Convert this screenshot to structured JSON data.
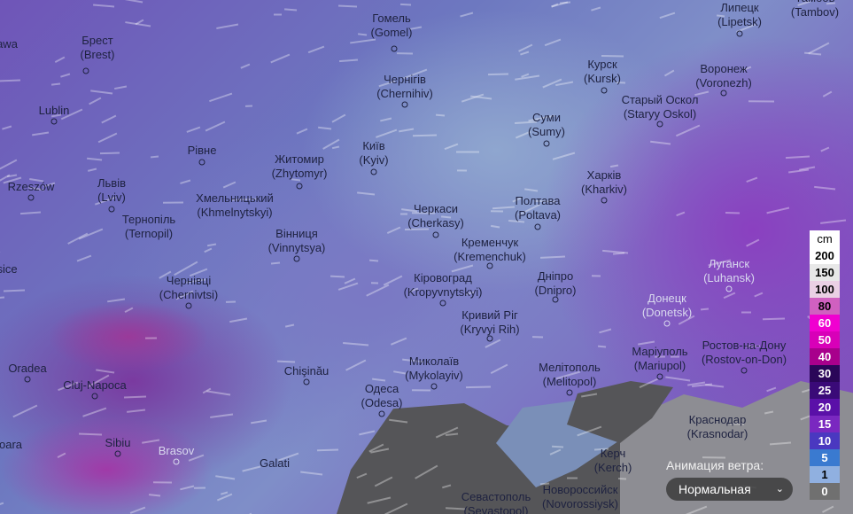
{
  "cities": [
    {
      "l1": "awa",
      "l2": ""
    },
    {
      "l1": "Брест",
      "l2": "(Brest)"
    },
    {
      "l1": "Гомель",
      "l2": "(Gomel)"
    },
    {
      "l1": "Чернігів",
      "l2": "(Chernihiv)"
    },
    {
      "l1": "Курск",
      "l2": "(Kursk)"
    },
    {
      "l1": "Липецк",
      "l2": "(Lipetsk)"
    },
    {
      "l1": "Тамбов",
      "l2": "(Tambov)"
    },
    {
      "l1": "Воронеж",
      "l2": "(Voronezh)"
    },
    {
      "l1": "Старый Оскол",
      "l2": "(Staryy Oskol)"
    },
    {
      "l1": "Lublin",
      "l2": ""
    },
    {
      "l1": "Суми",
      "l2": "(Sumy)"
    },
    {
      "l1": "Рівне",
      "l2": ""
    },
    {
      "l1": "Житомир",
      "l2": "(Zhytomyr)"
    },
    {
      "l1": "Київ",
      "l2": "(Kyiv)"
    },
    {
      "l1": "Харків",
      "l2": "(Kharkiv)"
    },
    {
      "l1": "Rzeszów",
      "l2": ""
    },
    {
      "l1": "Львів",
      "l2": "(Lviv)"
    },
    {
      "l1": "Тернопіль",
      "l2": "(Ternopil)"
    },
    {
      "l1": "Хмельницький",
      "l2": "(Khmelnytskyi)"
    },
    {
      "l1": "Вінниця",
      "l2": "(Vinnytsya)"
    },
    {
      "l1": "Черкаси",
      "l2": "(Cherkasy)"
    },
    {
      "l1": "Полтава",
      "l2": "(Poltava)"
    },
    {
      "l1": "Кременчук",
      "l2": "(Kremenchuk)"
    },
    {
      "l1": "Луганск",
      "l2": "(Luhansk)"
    },
    {
      "l1": "sice",
      "l2": ""
    },
    {
      "l1": "Кіровоград",
      "l2": "(Kropyvnytskyi)"
    },
    {
      "l1": "Дніпро",
      "l2": "(Dnipro)"
    },
    {
      "l1": "Чернівці",
      "l2": "(Chernivtsi)"
    },
    {
      "l1": "Донецк",
      "l2": "(Donetsk)"
    },
    {
      "l1": "Кривий Ріг",
      "l2": "(Kryvyi Rih)"
    },
    {
      "l1": "Маріуполь",
      "l2": "(Mariupol)"
    },
    {
      "l1": "Ростов-на-Дону",
      "l2": "(Rostov-on-Don)"
    },
    {
      "l1": "Oradea",
      "l2": ""
    },
    {
      "l1": "Chişinău",
      "l2": ""
    },
    {
      "l1": "Миколаїв",
      "l2": "(Mykolayiv)"
    },
    {
      "l1": "Мелітополь",
      "l2": "(Melitopol)"
    },
    {
      "l1": "Cluj-Napoca",
      "l2": ""
    },
    {
      "l1": "Одеса",
      "l2": "(Odesa)"
    },
    {
      "l1": "Sibiu",
      "l2": ""
    },
    {
      "l1": "Brasov",
      "l2": ""
    },
    {
      "l1": "oara",
      "l2": ""
    },
    {
      "l1": "Galati",
      "l2": ""
    },
    {
      "l1": "Керч",
      "l2": "(Kerch)"
    },
    {
      "l1": "Краснодар",
      "l2": "(Krasnodar)"
    },
    {
      "l1": "Севастополь",
      "l2": "(Sevastopol)"
    },
    {
      "l1": "Новороссийск",
      "l2": "(Novorossiysk)"
    }
  ],
  "legend": {
    "unit": "cm",
    "items": [
      {
        "label": "200",
        "color": "#ffffff",
        "text": "#000000"
      },
      {
        "label": "150",
        "color": "#e8e8e8",
        "text": "#000000"
      },
      {
        "label": "100",
        "color": "#ead0e4",
        "text": "#000000"
      },
      {
        "label": "80",
        "color": "#d060c0",
        "text": "#000000"
      },
      {
        "label": "60",
        "color": "#f000d0",
        "text": "#ffffff"
      },
      {
        "label": "50",
        "color": "#d800b8",
        "text": "#ffffff"
      },
      {
        "label": "40",
        "color": "#a8008c",
        "text": "#ffffff"
      },
      {
        "label": "30",
        "color": "#2a0658",
        "text": "#ffffff"
      },
      {
        "label": "25",
        "color": "#3a0a78",
        "text": "#ffffff"
      },
      {
        "label": "20",
        "color": "#5a10a8",
        "text": "#ffffff"
      },
      {
        "label": "15",
        "color": "#7a28c0",
        "text": "#ffffff"
      },
      {
        "label": "10",
        "color": "#4a38c0",
        "text": "#ffffff"
      },
      {
        "label": "5",
        "color": "#3a7ad0",
        "text": "#ffffff"
      },
      {
        "label": "1",
        "color": "#90b0e0",
        "text": "#000000"
      },
      {
        "label": "0",
        "color": "#707070",
        "text": "#ffffff"
      }
    ]
  },
  "wind_animation": {
    "label": "Анимация ветра:",
    "value": "Нормальная",
    "chevron_icon": "chevron-down-icon"
  }
}
